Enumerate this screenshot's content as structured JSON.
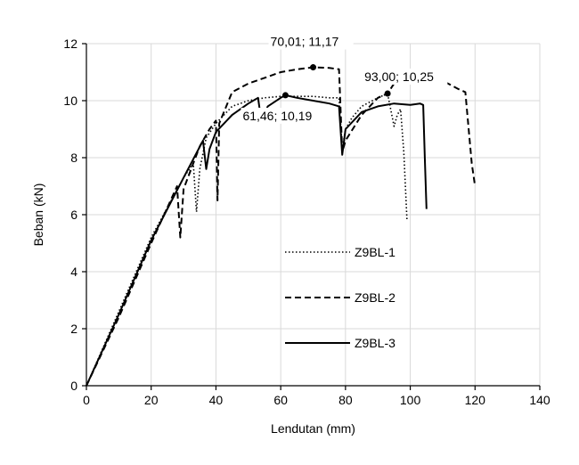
{
  "chart_data": {
    "type": "line",
    "title": "",
    "xlabel": "Lendutan (mm)",
    "ylabel": "Beban (kN)",
    "xlim": [
      0,
      140
    ],
    "ylim": [
      0,
      12
    ],
    "xticks": [
      "0",
      "20",
      "40",
      "60",
      "80",
      "100",
      "120",
      "140"
    ],
    "yticks": [
      "0",
      "2",
      "4",
      "6",
      "8",
      "10",
      "12"
    ],
    "grid": true,
    "legend_position": "center",
    "series": [
      {
        "name": "Z9BL-1",
        "style": "dotted",
        "x": [
          0,
          10,
          20,
          30,
          33,
          34,
          35,
          37,
          40,
          45,
          50,
          55,
          60,
          65,
          70,
          75,
          78,
          79,
          80,
          82,
          85,
          90,
          93,
          95,
          96,
          97,
          98,
          99
        ],
        "y": [
          0,
          2.6,
          5.2,
          7.3,
          7.8,
          6.1,
          7.6,
          8.7,
          9.2,
          9.8,
          10.0,
          10.1,
          10.15,
          10.15,
          10.15,
          10.1,
          10.1,
          8.3,
          9.0,
          9.4,
          9.8,
          10.1,
          10.25,
          9.1,
          9.5,
          9.7,
          8.2,
          5.8
        ]
      },
      {
        "name": "Z9BL-2",
        "style": "dashed",
        "x": [
          0,
          10,
          20,
          28,
          29,
          30,
          33,
          35,
          38,
          40,
          40.5,
          41,
          45,
          50,
          55,
          60,
          65,
          70,
          75,
          78,
          79,
          80,
          85,
          90,
          93,
          95,
          100,
          105,
          110,
          115,
          117,
          119,
          120
        ],
        "y": [
          0,
          2.4,
          5.0,
          7.0,
          5.2,
          6.9,
          7.8,
          8.4,
          9.0,
          9.3,
          6.5,
          9.2,
          10.3,
          10.6,
          10.8,
          11.0,
          11.1,
          11.17,
          11.15,
          11.1,
          8.2,
          8.6,
          9.5,
          10.1,
          10.25,
          10.6,
          10.8,
          10.7,
          10.7,
          10.4,
          10.3,
          7.8,
          7.0
        ]
      },
      {
        "name": "Z9BL-3",
        "style": "solid",
        "x": [
          0,
          10,
          20,
          30,
          36,
          37,
          38,
          40,
          45,
          50,
          53,
          54,
          56,
          60,
          61.46,
          65,
          70,
          75,
          78,
          79,
          80,
          85,
          90,
          95,
          100,
          103,
          104,
          104.5,
          105
        ],
        "y": [
          0,
          2.5,
          5.1,
          7.3,
          8.6,
          7.6,
          8.3,
          8.9,
          9.5,
          9.9,
          10.1,
          9.3,
          9.8,
          10.1,
          10.19,
          10.1,
          10.0,
          9.9,
          9.8,
          8.1,
          9.0,
          9.6,
          9.8,
          9.9,
          9.85,
          9.9,
          9.85,
          8.0,
          6.2
        ]
      }
    ],
    "annotations": [
      {
        "text": "70,01; 11,17",
        "x": 70.01,
        "y": 11.17
      },
      {
        "text": "93,00; 10,25",
        "x": 93.0,
        "y": 10.25
      },
      {
        "text": "61,46; 10,19",
        "x": 61.46,
        "y": 10.19
      }
    ]
  }
}
